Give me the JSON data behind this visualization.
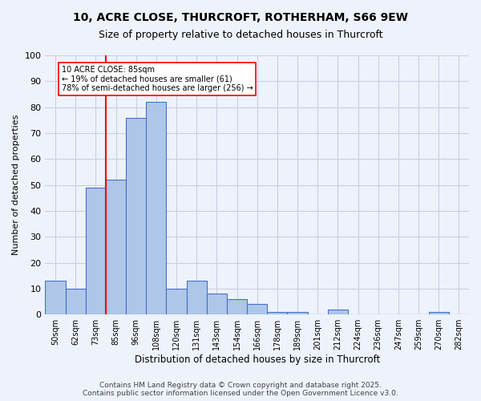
{
  "title_line1": "10, ACRE CLOSE, THURCROFT, ROTHERHAM, S66 9EW",
  "title_line2": "Size of property relative to detached houses in Thurcroft",
  "xlabel": "Distribution of detached houses by size in Thurcroft",
  "ylabel": "Number of detached properties",
  "bins": [
    "50sqm",
    "62sqm",
    "73sqm",
    "85sqm",
    "96sqm",
    "108sqm",
    "120sqm",
    "131sqm",
    "143sqm",
    "154sqm",
    "166sqm",
    "178sqm",
    "189sqm",
    "201sqm",
    "212sqm",
    "224sqm",
    "236sqm",
    "247sqm",
    "259sqm",
    "270sqm",
    "282sqm"
  ],
  "values": [
    13,
    10,
    49,
    52,
    76,
    82,
    10,
    13,
    8,
    6,
    4,
    1,
    1,
    0,
    2,
    0,
    0,
    0,
    0,
    1,
    0
  ],
  "bar_color": "#aec6e8",
  "bar_edge_color": "#4472c4",
  "vline_pos": 2.5,
  "vline_color": "red",
  "annotation_text": "10 ACRE CLOSE: 85sqm\n← 19% of detached houses are smaller (61)\n78% of semi-detached houses are larger (256) →",
  "annotation_box_color": "white",
  "annotation_box_edge_color": "red",
  "ylim": [
    0,
    100
  ],
  "yticks": [
    0,
    10,
    20,
    30,
    40,
    50,
    60,
    70,
    80,
    90,
    100
  ],
  "footer": "Contains HM Land Registry data © Crown copyright and database right 2025.\nContains public sector information licensed under the Open Government Licence v3.0.",
  "bg_color": "#eef2fb",
  "grid_color": "#c8d0e0"
}
